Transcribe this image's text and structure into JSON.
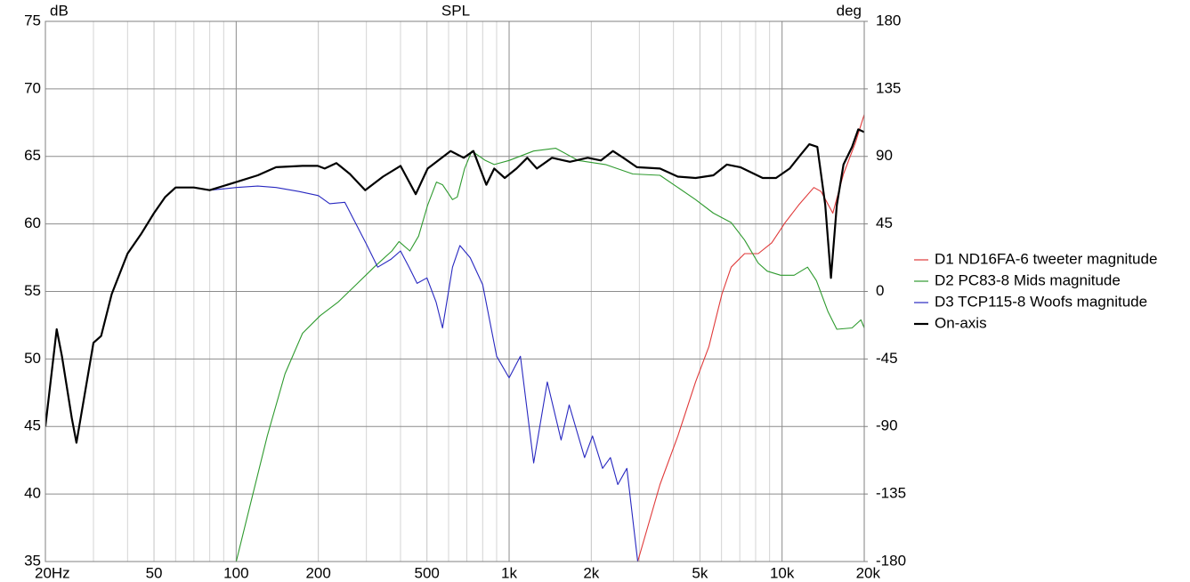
{
  "chart_data": {
    "type": "line",
    "title": "SPL",
    "y_label": "dB",
    "y2_label": "deg",
    "log_x": true,
    "grid": true,
    "legend": "right",
    "xlim": [
      20,
      20000
    ],
    "xticks": [
      {
        "value": 20,
        "label": "20Hz"
      },
      50,
      100,
      200,
      500,
      {
        "value": 1000,
        "label": "1k"
      },
      {
        "value": 2000,
        "label": "2k"
      },
      {
        "value": 5000,
        "label": "5k"
      },
      {
        "value": 10000,
        "label": "10k"
      },
      {
        "value": 20000,
        "label": "20k"
      }
    ],
    "xminorticks": [
      30,
      40,
      60,
      70,
      80,
      90,
      300,
      400,
      600,
      700,
      800,
      900,
      3000,
      4000,
      6000,
      7000,
      8000,
      9000
    ],
    "ylim": [
      35,
      75
    ],
    "yticks": [
      35,
      40,
      45,
      50,
      55,
      60,
      65,
      70,
      75
    ],
    "y2lim": [
      -180,
      180
    ],
    "y2ticks": [
      -180,
      -135,
      -90,
      -45,
      0,
      45,
      90,
      135,
      180
    ],
    "series": [
      {
        "name": "D1 ND16FA-6 tweeter magnitude",
        "color": "#e03a3a",
        "x": [
          2960,
          3570,
          4150,
          4820,
          5390,
          6020,
          6510,
          7290,
          8180,
          9160,
          10270,
          11500,
          13080,
          13900,
          15340,
          16790,
          18550,
          20000
        ],
        "values": [
          35,
          40.7,
          44.3,
          48.3,
          50.9,
          54.8,
          56.8,
          57.8,
          57.8,
          58.6,
          60.1,
          61.4,
          62.7,
          62.4,
          60.8,
          63.7,
          66.0,
          68.1
        ]
      },
      {
        "name": "D2 PC83-8 Mids magnitude",
        "color": "#2e9a2e",
        "x": [
          100,
          112,
          130,
          151,
          175,
          203,
          236,
          275,
          320,
          372,
          395,
          433,
          466,
          503,
          542,
          570,
          620,
          646,
          687,
          730,
          818,
          882,
          1000,
          1229,
          1482,
          1790,
          2255,
          2840,
          3570,
          4150,
          4820,
          5600,
          6510,
          7290,
          8180,
          8820,
          9880,
          11070,
          12400,
          13360,
          14730,
          15870,
          18050,
          19450,
          20000
        ],
        "values": [
          35,
          39.0,
          44.3,
          48.9,
          51.9,
          53.2,
          54.2,
          55.5,
          56.8,
          58.0,
          58.7,
          58.0,
          59.1,
          61.4,
          63.1,
          62.9,
          61.8,
          62.0,
          64.1,
          65.4,
          64.7,
          64.4,
          64.7,
          65.4,
          65.6,
          64.7,
          64.4,
          63.7,
          63.6,
          62.7,
          61.8,
          60.8,
          60.1,
          58.8,
          57.1,
          56.5,
          56.2,
          56.2,
          56.8,
          55.8,
          53.5,
          52.2,
          52.3,
          52.9,
          52.3
        ]
      },
      {
        "name": "D3 TCP115-8 Woofs magnitude",
        "color": "#2828c0",
        "x": [
          20,
          22,
          23,
          25,
          26,
          30,
          32,
          35,
          40,
          45,
          50,
          55,
          60,
          70,
          80,
          90,
          100,
          120,
          140,
          170,
          200,
          220,
          250,
          300,
          330,
          370,
          400,
          430,
          460,
          500,
          540,
          570,
          620,
          660,
          720,
          800,
          900,
          1000,
          1100,
          1230,
          1380,
          1550,
          1660,
          1890,
          2020,
          2200,
          2350,
          2500,
          2700,
          2960
        ],
        "values": [
          45.0,
          52.2,
          50.2,
          45.6,
          43.8,
          51.2,
          51.7,
          54.8,
          57.8,
          59.3,
          60.8,
          62.0,
          62.7,
          62.7,
          62.5,
          62.6,
          62.7,
          62.8,
          62.7,
          62.4,
          62.1,
          61.5,
          61.6,
          58.5,
          56.8,
          57.4,
          58.0,
          56.8,
          55.6,
          56.0,
          54.2,
          52.3,
          56.8,
          58.4,
          57.5,
          55.5,
          50.2,
          48.6,
          50.2,
          42.3,
          48.3,
          44.0,
          46.6,
          42.7,
          44.3,
          41.9,
          42.7,
          40.7,
          41.9,
          35
        ]
      },
      {
        "name": "On-axis",
        "color": "#000000",
        "x": [
          20,
          22,
          23,
          25,
          26,
          30,
          32,
          35,
          40,
          45,
          50,
          55,
          60,
          70,
          80,
          100,
          120,
          140,
          175,
          199,
          211,
          233,
          261,
          297,
          345,
          400,
          455,
          503,
          610,
          682,
          740,
          825,
          882,
          964,
          1064,
          1165,
          1264,
          1436,
          1670,
          1940,
          2170,
          2400,
          2620,
          2940,
          3570,
          4150,
          4820,
          5600,
          6280,
          7030,
          8490,
          9500,
          10660,
          11670,
          12580,
          13460,
          14400,
          15100,
          15870,
          16790,
          18050,
          19020,
          20000
        ],
        "values": [
          45.0,
          52.2,
          50.2,
          45.6,
          43.8,
          51.2,
          51.7,
          54.8,
          57.8,
          59.3,
          60.8,
          62.0,
          62.7,
          62.7,
          62.5,
          63.1,
          63.6,
          64.2,
          64.3,
          64.3,
          64.1,
          64.5,
          63.7,
          62.5,
          63.5,
          64.3,
          62.2,
          64.1,
          65.4,
          64.9,
          65.4,
          62.9,
          64.1,
          63.4,
          64.1,
          64.9,
          64.1,
          64.9,
          64.6,
          64.9,
          64.7,
          65.4,
          64.9,
          64.2,
          64.1,
          63.5,
          63.4,
          63.6,
          64.4,
          64.2,
          63.4,
          63.4,
          64.1,
          65.1,
          65.9,
          65.7,
          61.4,
          56.0,
          61.4,
          64.4,
          65.7,
          67.0,
          66.8
        ]
      }
    ]
  }
}
